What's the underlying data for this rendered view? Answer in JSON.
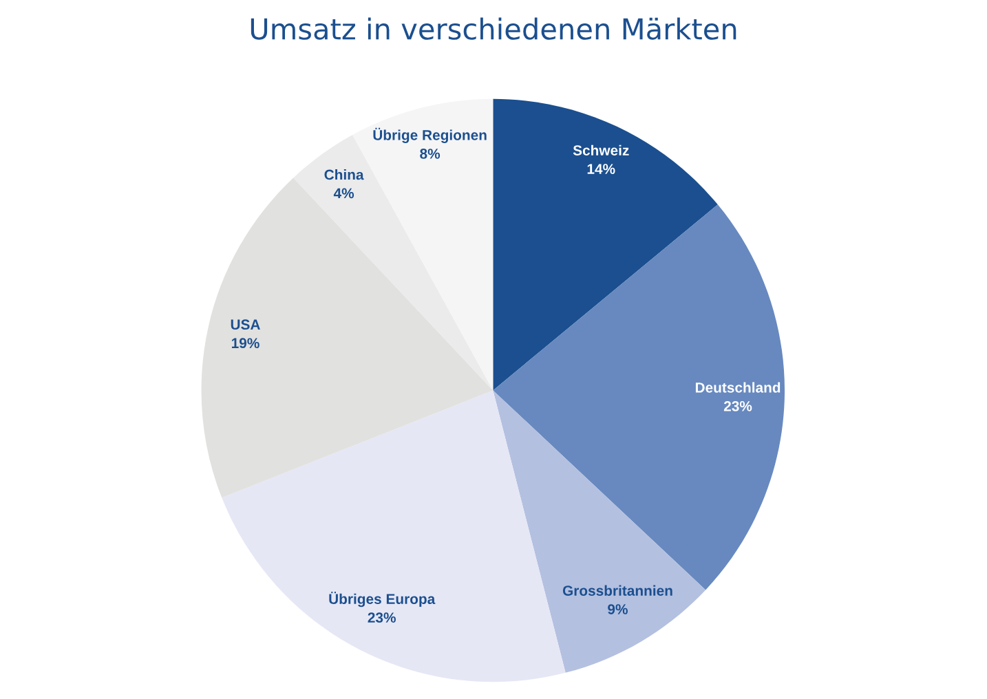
{
  "chart_data": {
    "type": "pie",
    "title": "Umsatz in verschiedenen Märkten",
    "categories": [
      "Schweiz",
      "Deutschland",
      "Grossbritannien",
      "Übriges Europa",
      "USA",
      "China",
      "Übrige Regionen"
    ],
    "values": [
      14,
      23,
      9,
      23,
      19,
      4,
      8
    ],
    "value_labels": [
      "14%",
      "23%",
      "9%",
      "23%",
      "19%",
      "4%",
      "8%"
    ],
    "colors": [
      "#1b4f8f",
      "#6789bf",
      "#b4c0e0",
      "#e6e7f5",
      "#e1e1df",
      "#ebebeb",
      "#f5f5f5"
    ],
    "legend": false
  }
}
